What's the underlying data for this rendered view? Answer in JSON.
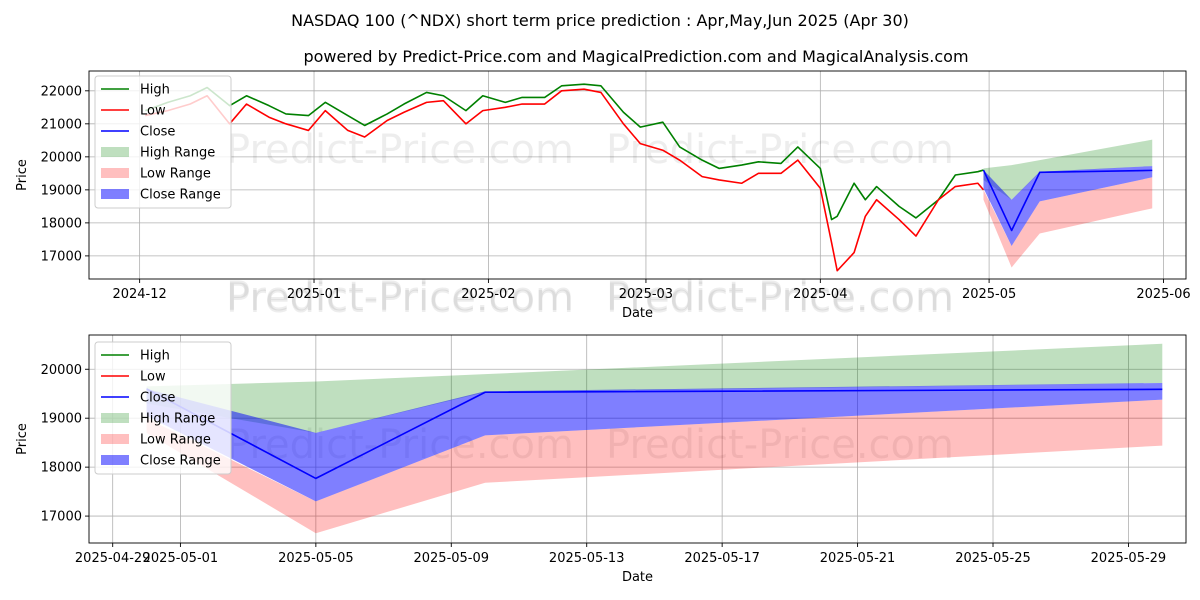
{
  "title": "NASDAQ 100 (^NDX) short term price prediction : Apr,May,Jun 2025 (Apr 30)",
  "subtitle": "powered by Predict-Price.com and MagicalPrediction.com and MagicalAnalysis.com",
  "watermark": "Predict-Price.com",
  "colors": {
    "high": "#008000",
    "low": "#ff0000",
    "close": "#0000ff",
    "high_range": "#008000",
    "low_range": "#ff0000",
    "close_range": "#0000ff"
  },
  "chart_data": [
    {
      "type": "line",
      "xlabel": "Date",
      "ylabel": "Price",
      "xlim": [
        "2024-11-22",
        "2025-06-05"
      ],
      "ylim": [
        16300,
        22600
      ],
      "grid": true,
      "legend_placement": "top-left",
      "x_ticks": [
        "2024-12",
        "2025-01",
        "2025-02",
        "2025-03",
        "2025-04",
        "2025-05",
        "2025-06"
      ],
      "x_tick_dates": [
        "2024-12-01",
        "2025-01-01",
        "2025-02-01",
        "2025-03-01",
        "2025-04-01",
        "2025-05-01",
        "2025-06-01"
      ],
      "y_ticks": [
        17000,
        18000,
        19000,
        20000,
        21000,
        22000
      ],
      "legend": [
        "High",
        "Low",
        "Close",
        "High Range",
        "Low Range",
        "Close Range"
      ],
      "history": {
        "dates": [
          "2024-12-02",
          "2024-12-06",
          "2024-12-10",
          "2024-12-13",
          "2024-12-17",
          "2024-12-20",
          "2024-12-24",
          "2024-12-27",
          "2024-12-31",
          "2025-01-03",
          "2025-01-07",
          "2025-01-10",
          "2025-01-14",
          "2025-01-17",
          "2025-01-21",
          "2025-01-24",
          "2025-01-28",
          "2025-01-31",
          "2025-02-04",
          "2025-02-07",
          "2025-02-11",
          "2025-02-14",
          "2025-02-18",
          "2025-02-21",
          "2025-02-25",
          "2025-02-28",
          "2025-03-04",
          "2025-03-07",
          "2025-03-11",
          "2025-03-14",
          "2025-03-18",
          "2025-03-21",
          "2025-03-25",
          "2025-03-28",
          "2025-04-01",
          "2025-04-03",
          "2025-04-04",
          "2025-04-07",
          "2025-04-09",
          "2025-04-11",
          "2025-04-15",
          "2025-04-18",
          "2025-04-22",
          "2025-04-25",
          "2025-04-29",
          "2025-04-30"
        ],
        "high": [
          21400,
          21650,
          21850,
          22100,
          21550,
          21850,
          21550,
          21300,
          21250,
          21650,
          21250,
          20950,
          21300,
          21600,
          21950,
          21850,
          21400,
          21850,
          21650,
          21800,
          21800,
          22150,
          22200,
          22150,
          21350,
          20900,
          21050,
          20300,
          19900,
          19650,
          19750,
          19850,
          19800,
          20300,
          19650,
          18100,
          18200,
          19200,
          18700,
          19100,
          18500,
          18150,
          18700,
          19450,
          19550,
          19600
        ],
        "low": [
          21250,
          21400,
          21600,
          21850,
          21000,
          21600,
          21200,
          21000,
          20800,
          21400,
          20800,
          20600,
          21100,
          21350,
          21650,
          21700,
          21000,
          21400,
          21500,
          21600,
          21600,
          22000,
          22050,
          21950,
          21000,
          20400,
          20200,
          19900,
          19400,
          19300,
          19200,
          19500,
          19500,
          19900,
          19050,
          17400,
          16550,
          17100,
          18200,
          18700,
          18100,
          17600,
          18700,
          19100,
          19200,
          19000
        ],
        "close": []
      },
      "forecast": {
        "dates": [
          "2025-04-30",
          "2025-05-05",
          "2025-05-10",
          "2025-05-30"
        ],
        "close": [
          19600,
          17770,
          19530,
          19590
        ],
        "high_range": {
          "upper": [
            19650,
            19750,
            19900,
            20520
          ],
          "lower": [
            19300,
            18700,
            19530,
            19720
          ]
        },
        "low_range": {
          "upper": [
            19000,
            17300,
            18650,
            19380
          ],
          "lower": [
            18700,
            16650,
            17680,
            18440
          ]
        },
        "close_range": {
          "upper": [
            19600,
            18700,
            19550,
            19720
          ],
          "lower": [
            19050,
            17300,
            18650,
            19380
          ]
        }
      }
    },
    {
      "type": "line",
      "xlabel": "Date",
      "ylabel": "Price",
      "xlim": [
        "2025-04-28.3",
        "2025-05-30.7"
      ],
      "ylim": [
        16450,
        20700
      ],
      "grid": true,
      "legend_placement": "top-left",
      "x_ticks": [
        "2025-04-29",
        "2025-05-01",
        "2025-05-05",
        "2025-05-09",
        "2025-05-13",
        "2025-05-17",
        "2025-05-21",
        "2025-05-25",
        "2025-05-29"
      ],
      "x_tick_dates": [
        "2025-04-29",
        "2025-05-01",
        "2025-05-05",
        "2025-05-09",
        "2025-05-13",
        "2025-05-17",
        "2025-05-21",
        "2025-05-25",
        "2025-05-29"
      ],
      "y_ticks": [
        17000,
        18000,
        19000,
        20000
      ],
      "legend": [
        "High",
        "Low",
        "Close",
        "High Range",
        "Low Range",
        "Close Range"
      ],
      "forecast": {
        "dates": [
          "2025-04-30",
          "2025-05-05",
          "2025-05-10",
          "2025-05-30"
        ],
        "close": [
          19600,
          17770,
          19530,
          19590
        ],
        "high_range": {
          "upper": [
            19650,
            19750,
            19900,
            20520
          ],
          "lower": [
            19300,
            18700,
            19530,
            19720
          ]
        },
        "low_range": {
          "upper": [
            19000,
            17300,
            18650,
            19380
          ],
          "lower": [
            18700,
            16650,
            17680,
            18440
          ]
        },
        "close_range": {
          "upper": [
            19600,
            18700,
            19550,
            19720
          ],
          "lower": [
            19050,
            17300,
            18650,
            19380
          ]
        }
      }
    }
  ]
}
